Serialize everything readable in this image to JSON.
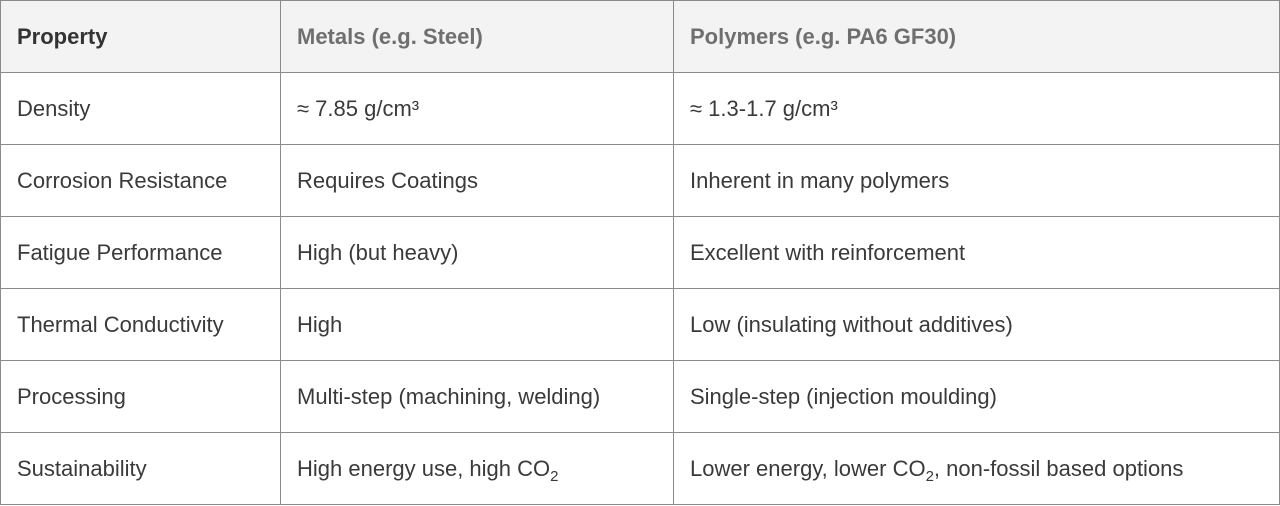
{
  "table": {
    "headers": [
      "Property",
      "Metals (e.g. Steel)",
      "Polymers (e.g. PA6 GF30)"
    ],
    "rows": [
      {
        "property": "Density",
        "metals": "≈ 7.85 g/cm³",
        "polymers": "≈ 1.3-1.7 g/cm³"
      },
      {
        "property": "Corrosion Resistance",
        "metals": "Requires Coatings",
        "polymers": "Inherent in many polymers"
      },
      {
        "property": "Fatigue Performance",
        "metals": "High (but heavy)",
        "polymers": "Excellent with reinforcement"
      },
      {
        "property": "Thermal Conductivity",
        "metals": "High",
        "polymers": "Low (insulating without additives)"
      },
      {
        "property": "Processing",
        "metals": "Multi-step (machining, welding)",
        "polymers": "Single-step (injection moulding)"
      },
      {
        "property": "Sustainability",
        "metals_pre": "High energy use, high CO",
        "metals_sub": "2",
        "polymers_pre": "Lower energy, lower CO",
        "polymers_sub": "2",
        "polymers_post": ", non-fossil based options"
      }
    ]
  }
}
